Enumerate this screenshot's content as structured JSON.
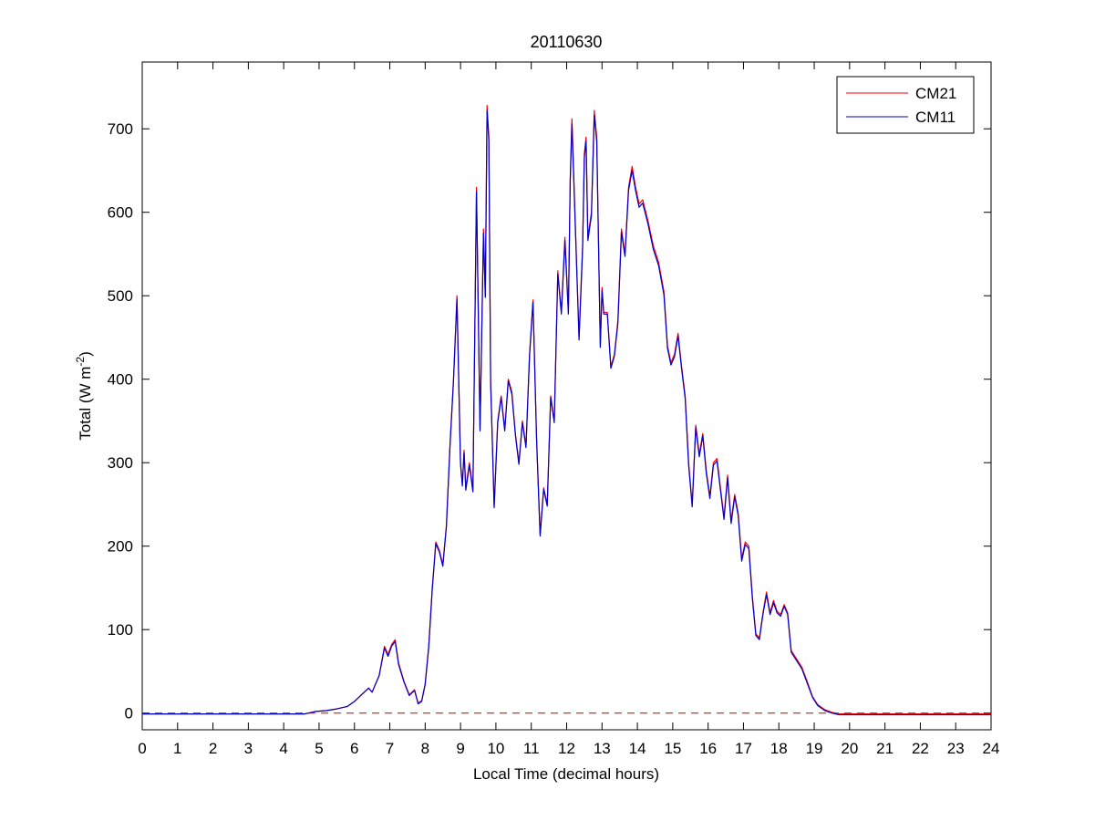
{
  "chart_data": {
    "type": "line",
    "title": "20110630",
    "xlabel": "Local Time (decimal hours)",
    "ylabel_main": "Total (W m",
    "ylabel_sup": "-2",
    "ylabel_close": ")",
    "xlim": [
      0,
      24
    ],
    "ylim": [
      -20,
      780
    ],
    "xticks": [
      0,
      1,
      2,
      3,
      4,
      5,
      6,
      7,
      8,
      9,
      10,
      11,
      12,
      13,
      14,
      15,
      16,
      17,
      18,
      19,
      20,
      21,
      22,
      23,
      24
    ],
    "yticks": [
      0,
      100,
      200,
      300,
      400,
      500,
      600,
      700
    ],
    "grid": false,
    "legend_position": "top-right",
    "zero_line": {
      "y": 0,
      "style": "dashed",
      "color": "#cc0000"
    },
    "series": [
      {
        "name": "CM21",
        "color": "#ff0000",
        "points": [
          [
            0,
            -1
          ],
          [
            1,
            -1
          ],
          [
            2,
            -1
          ],
          [
            3,
            -1
          ],
          [
            4,
            -1
          ],
          [
            4.6,
            -1
          ],
          [
            4.9,
            2
          ],
          [
            5.2,
            3
          ],
          [
            5.5,
            5
          ],
          [
            5.8,
            8
          ],
          [
            6.0,
            14
          ],
          [
            6.2,
            22
          ],
          [
            6.4,
            30
          ],
          [
            6.5,
            25
          ],
          [
            6.7,
            45
          ],
          [
            6.85,
            80
          ],
          [
            6.95,
            70
          ],
          [
            7.05,
            82
          ],
          [
            7.15,
            88
          ],
          [
            7.25,
            60
          ],
          [
            7.4,
            38
          ],
          [
            7.55,
            22
          ],
          [
            7.7,
            28
          ],
          [
            7.8,
            12
          ],
          [
            7.9,
            15
          ],
          [
            8.0,
            35
          ],
          [
            8.1,
            80
          ],
          [
            8.2,
            150
          ],
          [
            8.3,
            205
          ],
          [
            8.4,
            195
          ],
          [
            8.5,
            178
          ],
          [
            8.6,
            225
          ],
          [
            8.7,
            320
          ],
          [
            8.8,
            400
          ],
          [
            8.9,
            500
          ],
          [
            9.0,
            300
          ],
          [
            9.05,
            275
          ],
          [
            9.1,
            315
          ],
          [
            9.15,
            270
          ],
          [
            9.25,
            300
          ],
          [
            9.35,
            268
          ],
          [
            9.45,
            630
          ],
          [
            9.55,
            340
          ],
          [
            9.65,
            580
          ],
          [
            9.7,
            500
          ],
          [
            9.75,
            728
          ],
          [
            9.8,
            690
          ],
          [
            9.85,
            400
          ],
          [
            9.95,
            248
          ],
          [
            10.05,
            350
          ],
          [
            10.15,
            380
          ],
          [
            10.25,
            340
          ],
          [
            10.35,
            400
          ],
          [
            10.45,
            385
          ],
          [
            10.55,
            335
          ],
          [
            10.65,
            300
          ],
          [
            10.75,
            350
          ],
          [
            10.85,
            320
          ],
          [
            10.95,
            430
          ],
          [
            11.05,
            495
          ],
          [
            11.15,
            330
          ],
          [
            11.25,
            215
          ],
          [
            11.35,
            270
          ],
          [
            11.45,
            250
          ],
          [
            11.55,
            380
          ],
          [
            11.65,
            350
          ],
          [
            11.75,
            530
          ],
          [
            11.85,
            480
          ],
          [
            11.95,
            570
          ],
          [
            12.05,
            480
          ],
          [
            12.1,
            640
          ],
          [
            12.15,
            712
          ],
          [
            12.25,
            580
          ],
          [
            12.35,
            450
          ],
          [
            12.45,
            560
          ],
          [
            12.5,
            670
          ],
          [
            12.55,
            690
          ],
          [
            12.6,
            570
          ],
          [
            12.7,
            600
          ],
          [
            12.78,
            722
          ],
          [
            12.85,
            690
          ],
          [
            12.95,
            440
          ],
          [
            13.0,
            510
          ],
          [
            13.05,
            480
          ],
          [
            13.15,
            480
          ],
          [
            13.25,
            415
          ],
          [
            13.35,
            430
          ],
          [
            13.45,
            470
          ],
          [
            13.55,
            580
          ],
          [
            13.65,
            550
          ],
          [
            13.75,
            630
          ],
          [
            13.85,
            655
          ],
          [
            13.95,
            630
          ],
          [
            14.05,
            610
          ],
          [
            14.15,
            615
          ],
          [
            14.3,
            590
          ],
          [
            14.45,
            560
          ],
          [
            14.6,
            540
          ],
          [
            14.75,
            505
          ],
          [
            14.85,
            440
          ],
          [
            14.95,
            420
          ],
          [
            15.05,
            430
          ],
          [
            15.15,
            455
          ],
          [
            15.25,
            415
          ],
          [
            15.35,
            380
          ],
          [
            15.45,
            300
          ],
          [
            15.55,
            250
          ],
          [
            15.65,
            345
          ],
          [
            15.75,
            310
          ],
          [
            15.85,
            335
          ],
          [
            15.95,
            290
          ],
          [
            16.05,
            260
          ],
          [
            16.15,
            300
          ],
          [
            16.25,
            305
          ],
          [
            16.35,
            270
          ],
          [
            16.45,
            235
          ],
          [
            16.55,
            285
          ],
          [
            16.65,
            230
          ],
          [
            16.75,
            262
          ],
          [
            16.85,
            240
          ],
          [
            16.95,
            185
          ],
          [
            17.05,
            205
          ],
          [
            17.15,
            200
          ],
          [
            17.25,
            140
          ],
          [
            17.35,
            95
          ],
          [
            17.45,
            90
          ],
          [
            17.55,
            120
          ],
          [
            17.65,
            145
          ],
          [
            17.75,
            120
          ],
          [
            17.85,
            135
          ],
          [
            17.95,
            122
          ],
          [
            18.05,
            118
          ],
          [
            18.15,
            130
          ],
          [
            18.25,
            120
          ],
          [
            18.35,
            75
          ],
          [
            18.5,
            65
          ],
          [
            18.65,
            55
          ],
          [
            18.8,
            38
          ],
          [
            18.95,
            20
          ],
          [
            19.1,
            10
          ],
          [
            19.3,
            4
          ],
          [
            19.5,
            1
          ],
          [
            19.7,
            -1
          ],
          [
            20,
            -1
          ],
          [
            21,
            -1
          ],
          [
            22,
            -1
          ],
          [
            23,
            -1
          ],
          [
            24,
            -1
          ]
        ]
      },
      {
        "name": "CM11",
        "color": "#0000cc",
        "points": [
          [
            0,
            -1
          ],
          [
            1,
            -1
          ],
          [
            2,
            -1
          ],
          [
            3,
            -1
          ],
          [
            4,
            -1
          ],
          [
            4.6,
            -1
          ],
          [
            4.9,
            2
          ],
          [
            5.2,
            3
          ],
          [
            5.5,
            5
          ],
          [
            5.8,
            8
          ],
          [
            6.0,
            14
          ],
          [
            6.2,
            22
          ],
          [
            6.4,
            30
          ],
          [
            6.5,
            25
          ],
          [
            6.7,
            45
          ],
          [
            6.85,
            78
          ],
          [
            6.95,
            68
          ],
          [
            7.05,
            80
          ],
          [
            7.15,
            86
          ],
          [
            7.25,
            58
          ],
          [
            7.4,
            37
          ],
          [
            7.55,
            21
          ],
          [
            7.7,
            27
          ],
          [
            7.8,
            11
          ],
          [
            7.9,
            14
          ],
          [
            8.0,
            34
          ],
          [
            8.1,
            78
          ],
          [
            8.2,
            148
          ],
          [
            8.3,
            203
          ],
          [
            8.4,
            193
          ],
          [
            8.5,
            176
          ],
          [
            8.6,
            223
          ],
          [
            8.7,
            318
          ],
          [
            8.8,
            398
          ],
          [
            8.9,
            496
          ],
          [
            9.0,
            298
          ],
          [
            9.05,
            272
          ],
          [
            9.1,
            312
          ],
          [
            9.15,
            267
          ],
          [
            9.25,
            297
          ],
          [
            9.35,
            265
          ],
          [
            9.45,
            625
          ],
          [
            9.55,
            338
          ],
          [
            9.65,
            575
          ],
          [
            9.7,
            498
          ],
          [
            9.75,
            722
          ],
          [
            9.8,
            685
          ],
          [
            9.85,
            398
          ],
          [
            9.95,
            246
          ],
          [
            10.05,
            348
          ],
          [
            10.15,
            378
          ],
          [
            10.25,
            338
          ],
          [
            10.35,
            398
          ],
          [
            10.45,
            382
          ],
          [
            10.55,
            333
          ],
          [
            10.65,
            298
          ],
          [
            10.75,
            348
          ],
          [
            10.85,
            318
          ],
          [
            10.95,
            428
          ],
          [
            11.05,
            492
          ],
          [
            11.15,
            328
          ],
          [
            11.25,
            212
          ],
          [
            11.35,
            268
          ],
          [
            11.45,
            248
          ],
          [
            11.55,
            378
          ],
          [
            11.65,
            348
          ],
          [
            11.75,
            526
          ],
          [
            11.85,
            478
          ],
          [
            11.95,
            566
          ],
          [
            12.05,
            478
          ],
          [
            12.1,
            636
          ],
          [
            12.15,
            706
          ],
          [
            12.25,
            576
          ],
          [
            12.35,
            447
          ],
          [
            12.45,
            556
          ],
          [
            12.5,
            665
          ],
          [
            12.55,
            685
          ],
          [
            12.6,
            566
          ],
          [
            12.7,
            596
          ],
          [
            12.78,
            716
          ],
          [
            12.85,
            685
          ],
          [
            12.95,
            438
          ],
          [
            13.0,
            506
          ],
          [
            13.05,
            478
          ],
          [
            13.15,
            478
          ],
          [
            13.25,
            413
          ],
          [
            13.35,
            428
          ],
          [
            13.45,
            467
          ],
          [
            13.55,
            576
          ],
          [
            13.65,
            547
          ],
          [
            13.75,
            626
          ],
          [
            13.85,
            650
          ],
          [
            13.95,
            626
          ],
          [
            14.05,
            606
          ],
          [
            14.15,
            611
          ],
          [
            14.3,
            586
          ],
          [
            14.45,
            556
          ],
          [
            14.6,
            536
          ],
          [
            14.75,
            501
          ],
          [
            14.85,
            437
          ],
          [
            14.95,
            417
          ],
          [
            15.05,
            427
          ],
          [
            15.15,
            452
          ],
          [
            15.25,
            412
          ],
          [
            15.35,
            377
          ],
          [
            15.45,
            297
          ],
          [
            15.55,
            247
          ],
          [
            15.65,
            342
          ],
          [
            15.75,
            307
          ],
          [
            15.85,
            332
          ],
          [
            15.95,
            287
          ],
          [
            16.05,
            257
          ],
          [
            16.15,
            297
          ],
          [
            16.25,
            302
          ],
          [
            16.35,
            267
          ],
          [
            16.45,
            232
          ],
          [
            16.55,
            282
          ],
          [
            16.65,
            227
          ],
          [
            16.75,
            259
          ],
          [
            16.85,
            237
          ],
          [
            16.95,
            182
          ],
          [
            17.05,
            202
          ],
          [
            17.15,
            197
          ],
          [
            17.25,
            137
          ],
          [
            17.35,
            93
          ],
          [
            17.45,
            88
          ],
          [
            17.55,
            118
          ],
          [
            17.65,
            142
          ],
          [
            17.75,
            118
          ],
          [
            17.85,
            132
          ],
          [
            17.95,
            120
          ],
          [
            18.05,
            116
          ],
          [
            18.15,
            128
          ],
          [
            18.25,
            118
          ],
          [
            18.35,
            73
          ],
          [
            18.5,
            63
          ],
          [
            18.65,
            53
          ],
          [
            18.8,
            36
          ],
          [
            18.95,
            19
          ],
          [
            19.1,
            9
          ],
          [
            19.3,
            3
          ],
          [
            19.5,
            0
          ],
          [
            19.7,
            -2
          ],
          [
            20,
            -2
          ],
          [
            21,
            -2
          ],
          [
            22,
            -2
          ],
          [
            23,
            -2
          ],
          [
            24,
            -2
          ]
        ]
      }
    ]
  }
}
